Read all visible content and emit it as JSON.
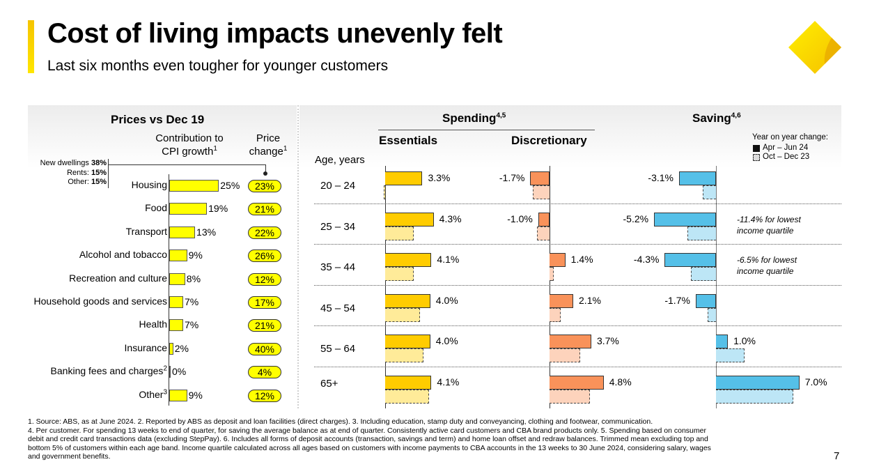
{
  "header": {
    "title": "Cost of living impacts unevenly felt",
    "subtitle": "Last six months even tougher for younger customers",
    "logo_icon": "cba-diamond-logo",
    "accent_color": "#FFCC00"
  },
  "chart_data": [
    {
      "type": "bar",
      "title": "Prices vs Dec 19",
      "orientation": "horizontal",
      "column_headers": {
        "contribution": "Contribution to",
        "contribution_line2": "CPI growth",
        "contribution_sup": "1",
        "price": "Price",
        "price_line2": "change",
        "price_sup": "1"
      },
      "housing_breakdown": [
        {
          "label": "New dwellings ",
          "value": "38%"
        },
        {
          "label": "Rents: ",
          "value": "15%"
        },
        {
          "label": "Other: ",
          "value": "15%"
        }
      ],
      "categories": [
        {
          "label": "Housing",
          "sup": "",
          "contribution": 25,
          "contribution_label": "25%",
          "price_change": "23%"
        },
        {
          "label": "Food",
          "sup": "",
          "contribution": 19,
          "contribution_label": "19%",
          "price_change": "21%"
        },
        {
          "label": "Transport",
          "sup": "",
          "contribution": 13,
          "contribution_label": "13%",
          "price_change": "22%"
        },
        {
          "label": "Alcohol and tobacco",
          "sup": "",
          "contribution": 9,
          "contribution_label": "9%",
          "price_change": "26%"
        },
        {
          "label": "Recreation and culture",
          "sup": "",
          "contribution": 8,
          "contribution_label": "8%",
          "price_change": "12%"
        },
        {
          "label": "Household goods and services",
          "sup": "",
          "contribution": 7,
          "contribution_label": "7%",
          "price_change": "17%"
        },
        {
          "label": "Health",
          "sup": "",
          "contribution": 7,
          "contribution_label": "7%",
          "price_change": "21%"
        },
        {
          "label": "Insurance",
          "sup": "",
          "contribution": 2,
          "contribution_label": "2%",
          "price_change": "40%"
        },
        {
          "label": "Banking fees and charges",
          "sup": "2",
          "contribution": 0,
          "contribution_label": "0%",
          "price_change": "4%"
        },
        {
          "label": "Other",
          "sup": "3",
          "contribution": 9,
          "contribution_label": "9%",
          "price_change": "12%"
        }
      ],
      "colors": {
        "bar": "#FFFF00"
      }
    },
    {
      "type": "bar",
      "orientation": "horizontal",
      "title": "Spending",
      "title_sup": "4,5",
      "saving_title": "Saving",
      "saving_sup": "4,6",
      "ylabel": "Age, years",
      "categories": [
        "20 – 24",
        "25 – 34",
        "35 – 44",
        "45 – 54",
        "55 – 64",
        "65+"
      ],
      "legend": {
        "title": "Year on year change:",
        "items": [
          "Apr – Jun 24",
          "Oct – Dec 23"
        ]
      },
      "panels": [
        {
          "name": "Essentials",
          "color_current": "#FFCC00",
          "color_previous": "#FFEB99",
          "series": [
            {
              "name": "Apr – Jun 24",
              "values": [
                3.3,
                4.3,
                4.1,
                4.0,
                4.0,
                4.1
              ],
              "labels": [
                "3.3%",
                "4.3%",
                "4.1%",
                "4.0%",
                "4.0%",
                "4.1%"
              ]
            },
            {
              "name": "Oct – Dec 23",
              "values": [
                -0.1,
                2.5,
                2.5,
                3.1,
                3.4,
                3.9
              ]
            }
          ]
        },
        {
          "name": "Discretionary",
          "color_current": "#F9925A",
          "color_previous": "#FDD3BC",
          "series": [
            {
              "name": "Apr – Jun 24",
              "values": [
                -1.7,
                -1.0,
                1.4,
                2.1,
                3.7,
                4.8
              ],
              "labels": [
                "-1.7%",
                "-1.0%",
                "1.4%",
                "2.1%",
                "3.7%",
                "4.8%"
              ]
            },
            {
              "name": "Oct – Dec 23",
              "values": [
                -1.5,
                -1.1,
                0.4,
                1.0,
                2.7,
                3.6
              ]
            }
          ]
        },
        {
          "name": "Saving",
          "color_current": "#55C0E8",
          "color_previous": "#BDE6F6",
          "series": [
            {
              "name": "Apr – Jun 24",
              "values": [
                -3.1,
                -5.2,
                -4.3,
                -1.7,
                1.0,
                7.0
              ],
              "labels": [
                "-3.1%",
                "-5.2%",
                "-4.3%",
                "-1.7%",
                "1.0%",
                "7.0%"
              ]
            },
            {
              "name": "Oct – Dec 23",
              "values": [
                -1.1,
                -2.4,
                -2.1,
                -0.7,
                2.4,
                6.5
              ]
            }
          ],
          "annotations": [
            {
              "row": 1,
              "line1": "-11.4% for lowest",
              "line2": "income quartile"
            },
            {
              "row": 2,
              "line1": "-6.5% for lowest",
              "line2": "income quartile"
            }
          ]
        }
      ]
    }
  ],
  "footer": {
    "line1": "1. Source: ABS, as at June 2024.  2. Reported by ABS as deposit and loan facilities (direct charges).  3. Including education, stamp duty and conveyancing, clothing and footwear, communication.",
    "line2": "4. Per customer. For spending 13 weeks to end of quarter, for saving the average balance as at end of quarter. Consistently active card customers and CBA brand products only.  5. Spending based on consumer",
    "line3": "debit and credit card transactions data (excluding StepPay).  6. Includes all forms of deposit accounts (transaction, savings and term) and home loan offset and redraw balances. Trimmed mean excluding top and",
    "line4": "bottom 5% of customers within each age band. Income quartile calculated across all ages based on customers with income payments to CBA accounts in the 13 weeks to 30 June 2024, considering salary, wages",
    "line5": "and government benefits.",
    "page_number": "7"
  }
}
